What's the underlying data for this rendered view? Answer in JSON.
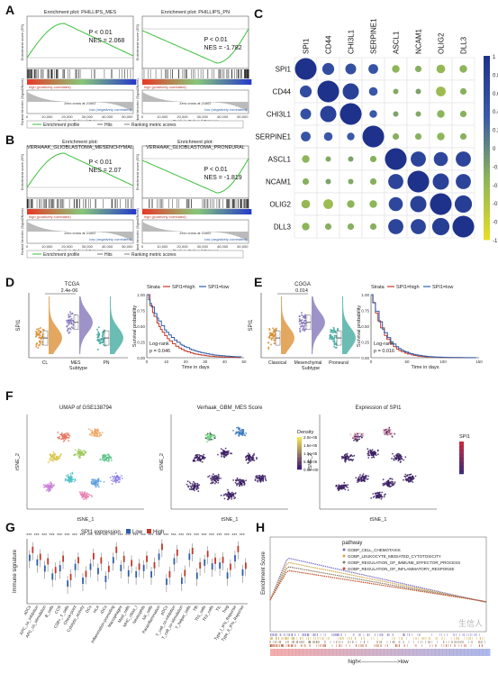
{
  "panels": {
    "A": {
      "label": "A",
      "plots": [
        {
          "title": "Enrichment plot: PHILLIPS_MES",
          "p": "P < 0.01",
          "nes": "NES = 2.068",
          "pos": "high (positively correlated)",
          "neg": "low (negatively correlated)",
          "zero": "Zero cross at 21667",
          "xlabel": "Rank in Ordered Dataset",
          "ylabel_top": "Enrichment score (ES)",
          "ylabel_bot": "Ranked list metric (Signal2Noise)",
          "ticks": [
            "0",
            "10,000",
            "20,000",
            "30,000",
            "40,000",
            "50,000"
          ],
          "shape": "up"
        },
        {
          "title": "Enrichment plot: PHILLIPS_PN",
          "p": "P < 0.01",
          "nes": "NES = -1.782",
          "pos": "high (positively correlated)",
          "neg": "low (negatively correlated)",
          "zero": "Zero cross at 21667",
          "xlabel": "Rank in Ordered Dataset",
          "ylabel_top": "Enrichment score (ES)",
          "ylabel_bot": "Ranked list metric (Signal2Noise)",
          "ticks": [
            "0",
            "10,000",
            "20,000",
            "30,000",
            "40,000",
            "50,000"
          ],
          "shape": "down"
        }
      ],
      "legend": [
        "Enrichment profile",
        "Hits",
        "Ranking metric scores"
      ]
    },
    "B": {
      "label": "B",
      "plots": [
        {
          "title": "Enrichment plot:",
          "title2": "VERHAAK_GLIOBLASTOMA_MESENCHYMAL",
          "p": "P < 0.01",
          "nes": "NES = 2.07",
          "pos": "high (positively correlated)",
          "neg": "low (negatively correlated)",
          "zero": "Zero cross at 21667",
          "xlabel": "Rank in Ordered Dataset",
          "ylabel_top": "Enrichment score (ES)",
          "ylabel_bot": "Ranked list metric (Signal2Noise)",
          "ticks": [
            "0",
            "10,000",
            "20,000",
            "30,000",
            "40,000",
            "50,000"
          ],
          "shape": "up"
        },
        {
          "title": "Enrichment plot:",
          "title2": "VERHAAK_GLIOBLASTOMA_PRONEURAL",
          "p": "P < 0.01",
          "nes": "NES = -1.819",
          "pos": "high (positively correlated)",
          "neg": "low (negatively correlated)",
          "zero": "Zero cross at 21667",
          "xlabel": "Rank in Ordered Dataset",
          "ylabel_top": "Enrichment score (ES)",
          "ylabel_bot": "Ranked list metric (Signal2Noise)",
          "ticks": [
            "0",
            "10,000",
            "20,000",
            "30,000",
            "40,000",
            "50,000"
          ],
          "shape": "down"
        }
      ],
      "legend": [
        "Enrichment profile",
        "Hits",
        "Ranking metric scores"
      ]
    },
    "C": {
      "label": "C",
      "genes": [
        "SPI1",
        "CD44",
        "CHI3L1",
        "SERPINE1",
        "ASCL1",
        "NCAM1",
        "OLIG2",
        "DLL3"
      ],
      "colorbar_ticks": [
        "1",
        "0.8",
        "0.6",
        "0.4",
        "0.2",
        "0",
        "-0.2",
        "-0.4",
        "-0.6",
        "-0.8",
        "-1"
      ]
    },
    "D": {
      "label": "D",
      "title": "TCGA",
      "pval": "2.4e-06",
      "groups": [
        "CL",
        "MES",
        "PN"
      ],
      "xlabel": "Subtype",
      "ylabel": "SPI1",
      "surv_legend": [
        "Strata",
        "SPI1=high",
        "SPI1=low"
      ],
      "logrank": "Log-rank",
      "p": "p = 0.046",
      "surv_xlabel": "Time in days",
      "surv_ylabel": "Survival probability",
      "surv_xticks": [
        "0",
        "10",
        "20",
        "30",
        "40",
        "50"
      ]
    },
    "E": {
      "label": "E",
      "title": "CGGA",
      "pval": "0.014",
      "groups": [
        "Classical",
        "Mesenchymal",
        "Proneural"
      ],
      "xlabel": "Subtype",
      "ylabel": "SPI1",
      "surv_legend": [
        "Strata",
        "SPI1=high",
        "SPI1=low"
      ],
      "logrank": "Log-rank",
      "p": "p = 0.016",
      "surv_xlabel": "Time in days",
      "surv_ylabel": "Survival probability",
      "surv_xticks": [
        "0",
        "50",
        "100",
        "150"
      ]
    },
    "F": {
      "label": "F",
      "t1": "UMAP of GSE138794",
      "t2": "Verhaak_GBM_MES Score",
      "t3": "Expression of SPI1",
      "xlabel": "tSNE_1",
      "ylabel": "tSNE_2",
      "density_title": "Density",
      "density_ticks": [
        "2.0e-05",
        "1.5e-05",
        "1.0e-05",
        "5.0e-06",
        "0.0e+00"
      ],
      "spi1_title": "SPI1"
    },
    "G": {
      "label": "G",
      "legend_title": "SPI1 expression",
      "legend": [
        "Low",
        "High"
      ],
      "ylabel": "Immune signature",
      "categories": [
        "aDCs",
        "APC_co_inhibition",
        "APC_co_stimulation",
        "B_cells",
        "CCR",
        "CD8+_T_cells",
        "Check-point",
        "Cytolytic_activity",
        "DCs",
        "HLA",
        "iDCs",
        "Inflammation-promoting",
        "Macrophages",
        "Mast_cells",
        "MHC_class_I",
        "Neutrophils",
        "NK_cells",
        "Parainflammation",
        "pDCs",
        "T_cell_co-inhibition",
        "T_cell_co-stimulation",
        "T_helper_cells",
        "Tfh",
        "Th1_cells",
        "Th2_cells",
        "TIL",
        "Treg",
        "Type_I_IFN_Reponse",
        "Type_II_IFN_Reponse"
      ]
    },
    "H": {
      "label": "H",
      "legend_title": "pathway",
      "pathways": [
        "GOBP_CELL_CHEMOTAXIS",
        "GOBP_LEUKOCYTE_MEDIATED_CYTOTOXICITY",
        "GOBP_REGULATION_OF_IMMUNE_EFFECTOR_PROCESS",
        "GOBP_REGULATION_OF_INFLAMMATORY_RESPONSE"
      ],
      "ylabel": "Enrichment Score",
      "axis_text": "high<-------------------->low",
      "watermark": "生信人"
    }
  },
  "colors": {
    "red": "#c0392b",
    "blue": "#2f5fa8",
    "orange": "#d98a2b",
    "purple": "#7e6fb6",
    "teal": "#3aa59a"
  }
}
